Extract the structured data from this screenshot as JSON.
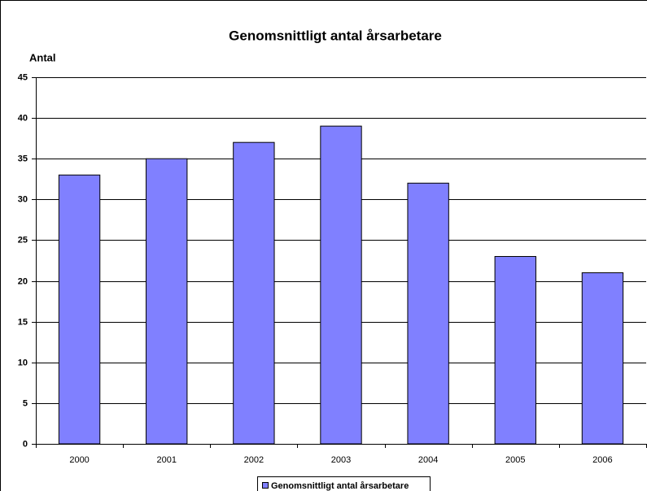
{
  "chart_data": {
    "type": "bar",
    "title": "Genomsnittligt antal årsarbetare",
    "y_label": "Antal",
    "categories": [
      "2000",
      "2001",
      "2002",
      "2003",
      "2004",
      "2005",
      "2006"
    ],
    "series": [
      {
        "name": "Genomsnittligt antal årsarbetare",
        "color": "#8080ff",
        "values": [
          33,
          35,
          37,
          39,
          32,
          23,
          21
        ]
      }
    ],
    "ylim": [
      0,
      45
    ],
    "yticks": [
      0,
      5,
      10,
      15,
      20,
      25,
      30,
      35,
      40,
      45
    ],
    "grid": true,
    "legend": "bottom"
  }
}
